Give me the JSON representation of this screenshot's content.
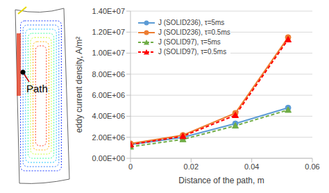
{
  "chart_data": {
    "type": "line",
    "annotation": "Path",
    "x_label": "Distance of the path, m",
    "y_label": "eddy current density, A/m²",
    "x": [
      0,
      0.0173,
      0.0346,
      0.052
    ],
    "xlim": [
      0,
      0.06
    ],
    "xticks": [
      0,
      0.02,
      0.04,
      0.06
    ],
    "ylim": [
      0,
      14000000
    ],
    "yticks": [
      {
        "value": 0,
        "label": "0.00E+00"
      },
      {
        "value": 2000000,
        "label": "2.00E+06"
      },
      {
        "value": 4000000,
        "label": "4.00E+06"
      },
      {
        "value": 6000000,
        "label": "6.00E+06"
      },
      {
        "value": 8000000,
        "label": "8.00E+06"
      },
      {
        "value": 10000000,
        "label": "1.00E+07"
      },
      {
        "value": 12000000,
        "label": "1.20E+07"
      },
      {
        "value": 14000000,
        "label": "1.40E+07"
      }
    ],
    "grid": true,
    "legend": "upper left",
    "series": [
      {
        "name": "J (SOLID236), τ=5ms",
        "color": "#5b9bd5",
        "marker": "circle",
        "line_style": "solid",
        "values": [
          1300000,
          2000000,
          3300000,
          4800000
        ]
      },
      {
        "name": "J (SOLID236), τ=0.5ms",
        "color": "#ed7d31",
        "marker": "circle",
        "line_style": "solid",
        "values": [
          1400000,
          2200000,
          4300000,
          11500000
        ]
      },
      {
        "name": "J (SOLID97), τ=5ms",
        "color": "#70ad47",
        "marker": "triangle",
        "line_style": "dashed",
        "values": [
          1100000,
          1800000,
          3100000,
          4600000
        ]
      },
      {
        "name": "J (SOLID97), τ=0.5ms",
        "color": "#ff0000",
        "marker": "triangle",
        "line_style": "dashed",
        "values": [
          1300000,
          2100000,
          4100000,
          11300000
        ]
      }
    ]
  }
}
